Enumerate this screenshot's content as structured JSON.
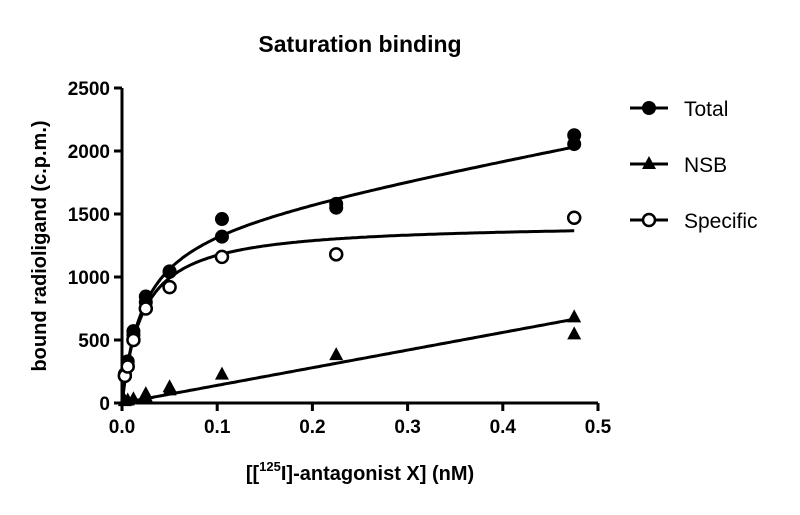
{
  "chart_data": {
    "type": "scatter",
    "title": "Saturation binding",
    "xlabel_prefix": "[[",
    "xlabel_sup": "125",
    "xlabel_suffix": "I]-antagonist X] (nM)",
    "ylabel": "bound radioligand (c.p.m.)",
    "xlim": [
      0,
      0.5
    ],
    "ylim": [
      0,
      2500
    ],
    "xticks": [
      "0.0",
      "0.1",
      "0.2",
      "0.3",
      "0.4",
      "0.5"
    ],
    "yticks": [
      "0",
      "500",
      "1000",
      "1500",
      "2000",
      "2500"
    ],
    "grid": false,
    "legend_position": "right",
    "series": [
      {
        "name": "Total",
        "marker": "filled-circle",
        "x": [
          0.003,
          0.003,
          0.006,
          0.006,
          0.012,
          0.012,
          0.025,
          0.025,
          0.05,
          0.05,
          0.105,
          0.105,
          0.225,
          0.225,
          0.475,
          0.475
        ],
        "y": [
          230,
          215,
          330,
          290,
          570,
          540,
          845,
          800,
          1045,
          1040,
          1460,
          1320,
          1580,
          1550,
          2125,
          2055
        ],
        "fit": {
          "model": "one-site total",
          "Bmax": 1430,
          "Kd": 0.022,
          "NS_slope": 1400
        }
      },
      {
        "name": "NSB",
        "marker": "filled-triangle",
        "x": [
          0.003,
          0.006,
          0.012,
          0.025,
          0.025,
          0.05,
          0.05,
          0.105,
          0.225,
          0.475,
          0.475
        ],
        "y": [
          15,
          20,
          30,
          70,
          50,
          125,
          100,
          225,
          380,
          680,
          545
        ],
        "fit": {
          "model": "linear",
          "slope": 1400,
          "intercept": 0
        }
      },
      {
        "name": "Specific",
        "marker": "open-circle",
        "x": [
          0.003,
          0.006,
          0.012,
          0.025,
          0.05,
          0.105,
          0.225,
          0.475
        ],
        "y": [
          215,
          290,
          500,
          750,
          920,
          1160,
          1180,
          1470
        ],
        "fit": {
          "model": "one-site specific",
          "Bmax": 1430,
          "Kd": 0.022
        }
      }
    ]
  }
}
